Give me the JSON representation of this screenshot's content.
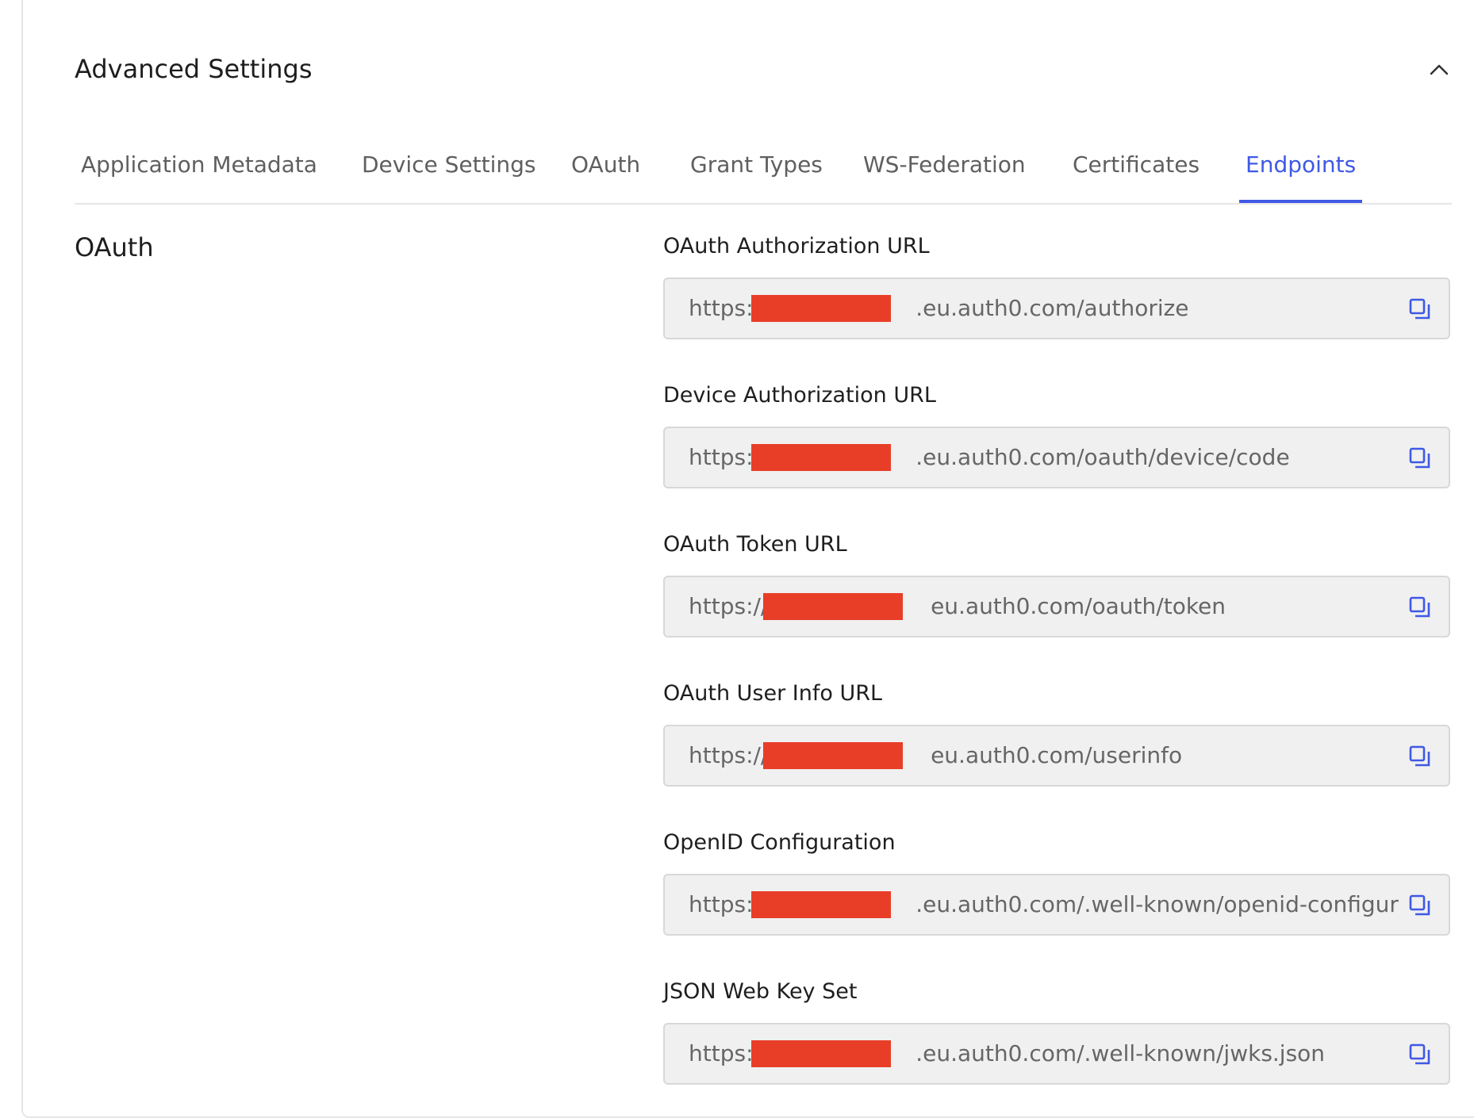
{
  "panel": {
    "title": "Advanced Settings"
  },
  "tabs": [
    {
      "label": "Application Metadata",
      "active": false
    },
    {
      "label": "Device Settings",
      "active": false
    },
    {
      "label": "OAuth",
      "active": false
    },
    {
      "label": "Grant Types",
      "active": false
    },
    {
      "label": "WS-Federation",
      "active": false
    },
    {
      "label": "Certificates",
      "active": false
    },
    {
      "label": "Endpoints",
      "active": true
    }
  ],
  "section": {
    "label": "OAuth"
  },
  "fields": [
    {
      "label": "OAuth Authorization URL",
      "value": "https:                       .eu.auth0.com/authorize"
    },
    {
      "label": "Device Authorization URL",
      "value": "https:                       .eu.auth0.com/oauth/device/code"
    },
    {
      "label": "OAuth Token URL",
      "value": "https://                       eu.auth0.com/oauth/token"
    },
    {
      "label": "OAuth User Info URL",
      "value": "https://                       eu.auth0.com/userinfo"
    },
    {
      "label": "OpenID Configuration",
      "value": "https:                       .eu.auth0.com/.well-known/openid-configur"
    },
    {
      "label": "JSON Web Key Set",
      "value": "https:                       .eu.auth0.com/.well-known/jwks.json"
    }
  ],
  "colors": {
    "accent": "#3f59e4",
    "redaction": "#e83e28",
    "input_bg": "#f0f0f0"
  },
  "icons": {
    "collapse": "chevron-up-icon",
    "copy": "copy-icon"
  }
}
